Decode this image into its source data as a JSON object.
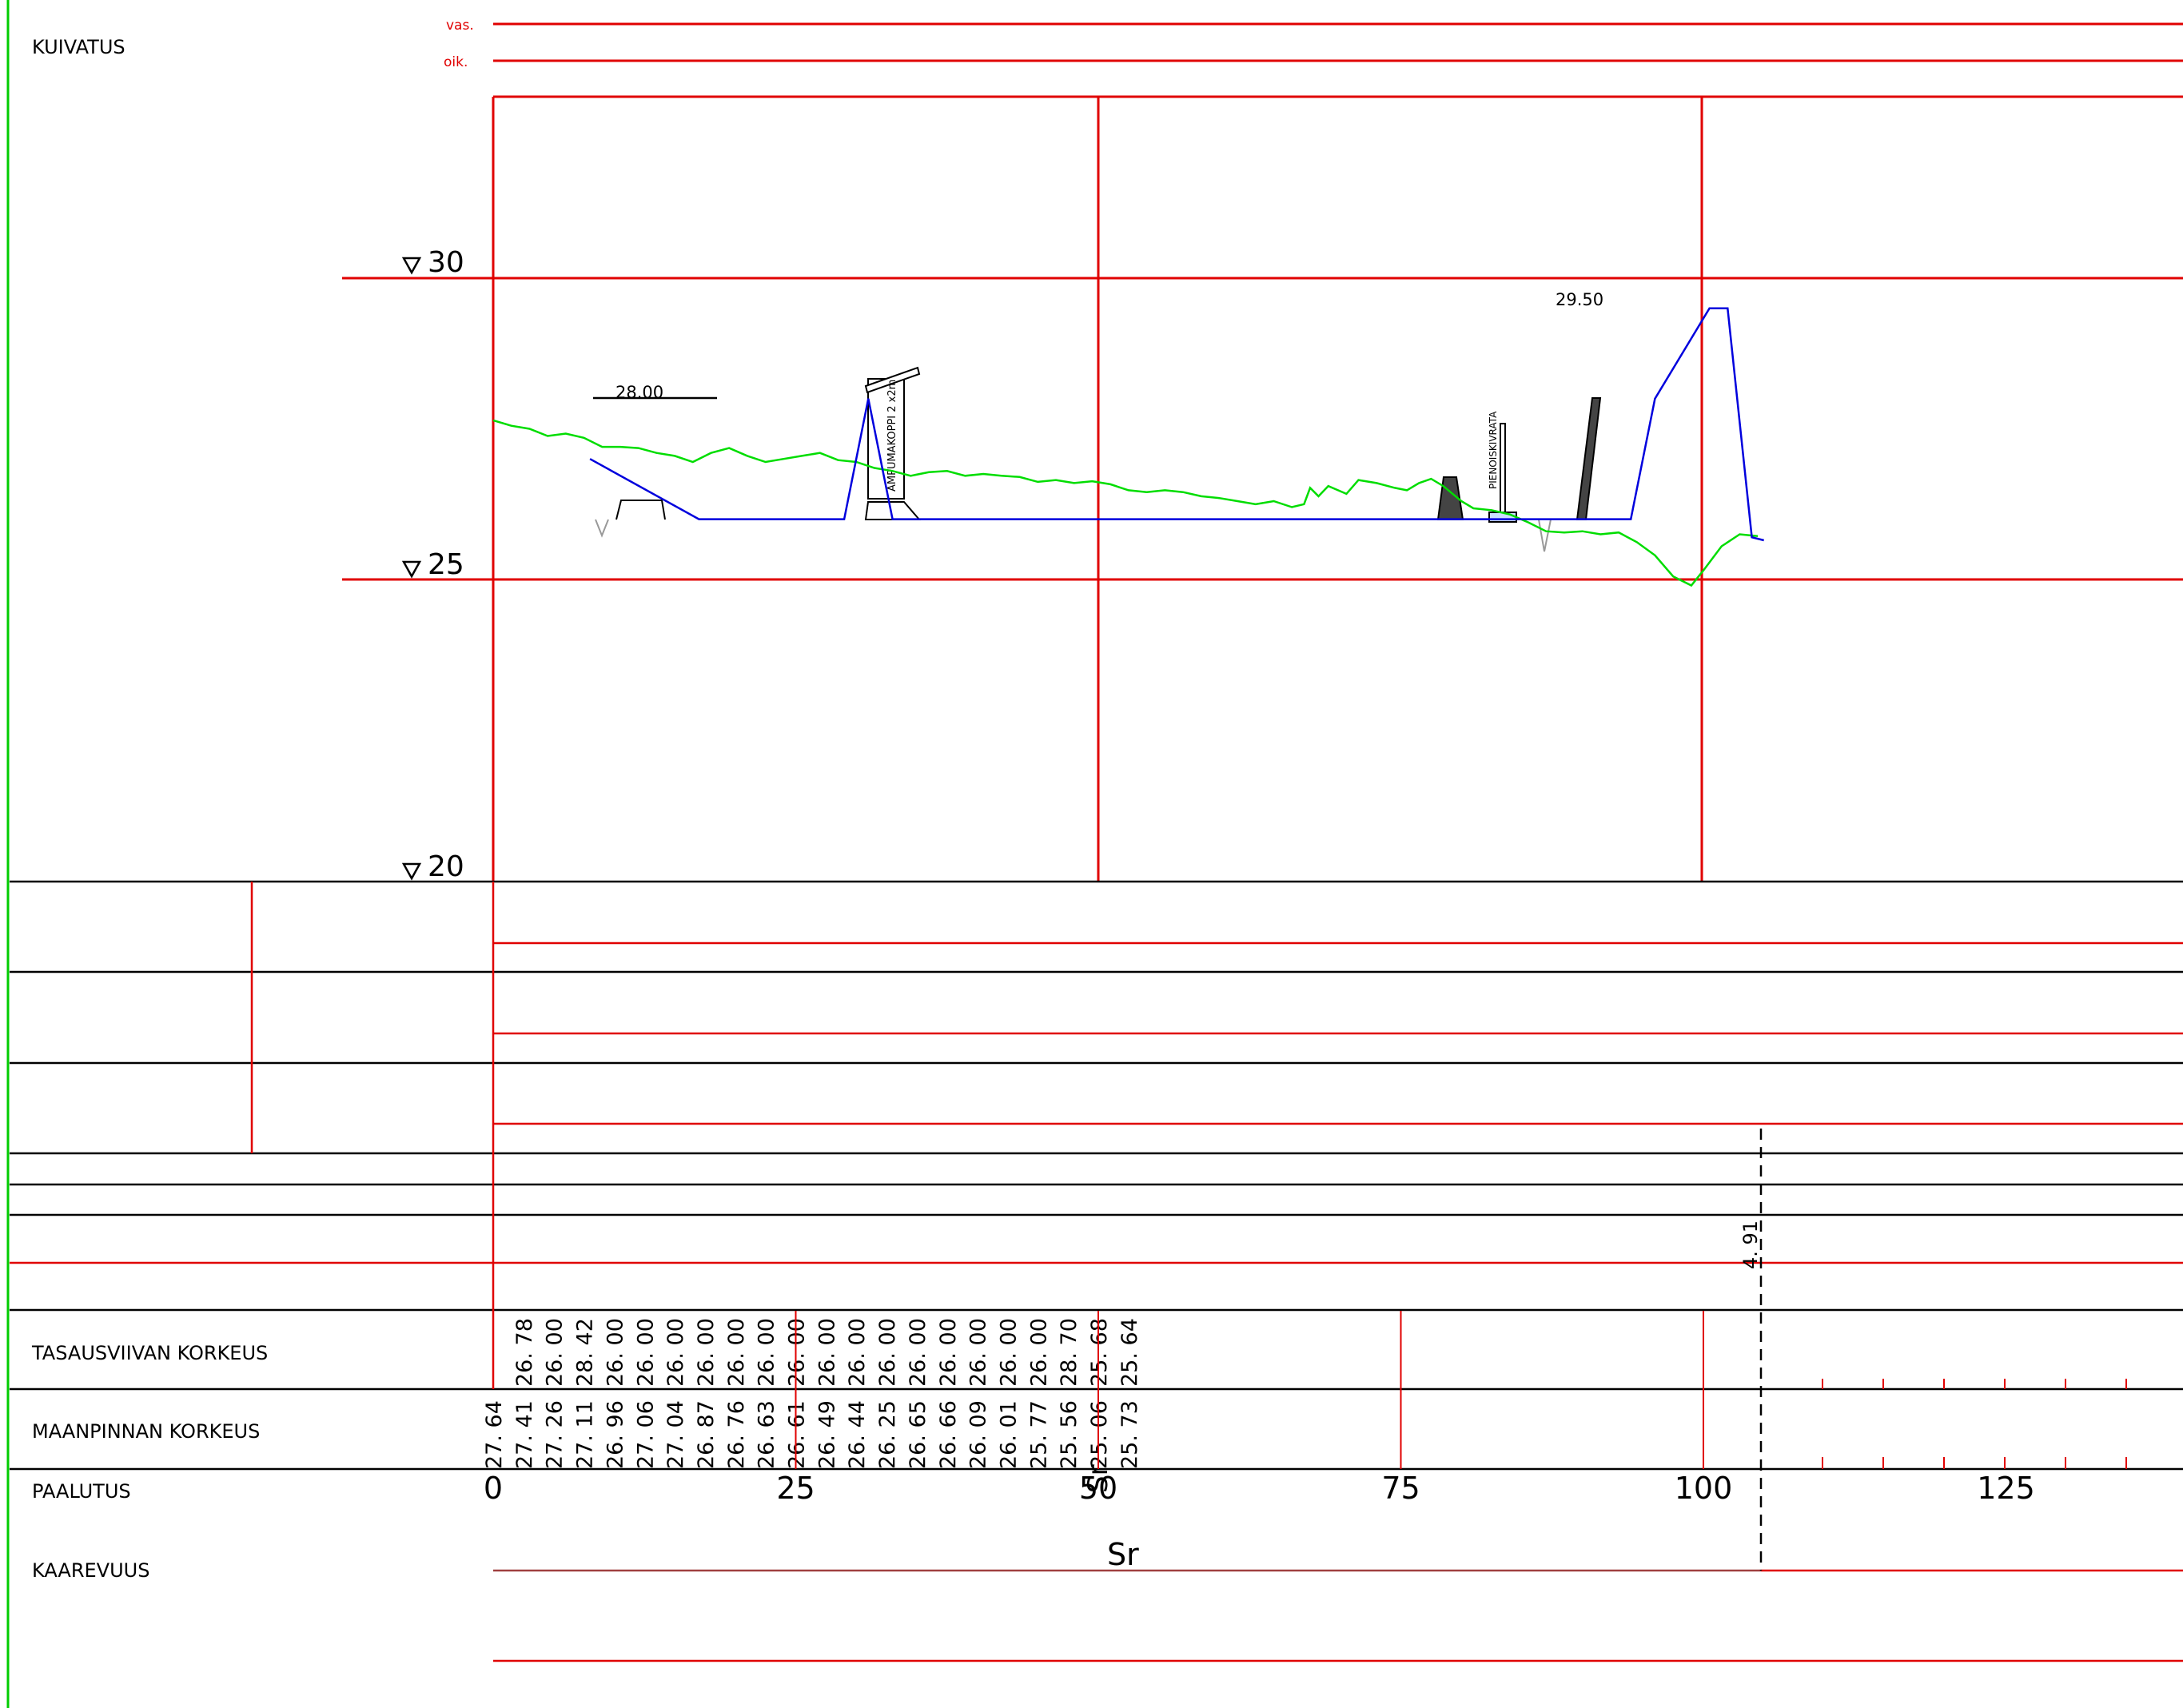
{
  "header": {
    "title": "KUIVATUS",
    "left_label": "vas.",
    "right_label": "oik."
  },
  "elevation_marks": [
    "30",
    "25",
    "20"
  ],
  "rows": {
    "tasausviiva": "TASAUSVIIVAN KORKEUS",
    "maanpinta": "MAANPINNAN KORKEUS",
    "paalutus": "PAALUTUS",
    "kaarevuus": "KAAREVUUS"
  },
  "stations": [
    "0",
    "25",
    "50",
    "75",
    "100",
    "125"
  ],
  "curvature_label": "Sr",
  "annotations": {
    "elev_left": "28.00",
    "elev_right": "29.50",
    "shelter": "AMPUMAKOPPI 2 x2m",
    "track": "PIENOISKIVRATA",
    "offset": "4. 91"
  },
  "chart_data": {
    "type": "line",
    "xlabel": "PAALUTUS",
    "ylabel": "",
    "xlim": [
      0,
      140
    ],
    "ylim": [
      20,
      33
    ],
    "stations": [
      0,
      2.5,
      5,
      7.5,
      10,
      12.5,
      15,
      17.5,
      20,
      22.5,
      25,
      27.5,
      30,
      32.5,
      35,
      37.5,
      40,
      42.5,
      45,
      47.5,
      50,
      52.5,
      55,
      57.5,
      60,
      62.5,
      65,
      67.5,
      70,
      72.5,
      75,
      77.5,
      80,
      82.5,
      85,
      87.5,
      90,
      92.5,
      95,
      97.5,
      100,
      102.5,
      105
    ],
    "tasausviivan_korkeus_labels": [
      "26. 78",
      "26. 00",
      "28. 42",
      "26. 00",
      "26. 00",
      "26. 00",
      "26. 00",
      "26. 00",
      "26. 00",
      "26. 00",
      "26. 00",
      "26. 00",
      "26. 00",
      "26. 00",
      "26. 00",
      "26. 00",
      "26. 00",
      "26. 00",
      "28. 70",
      "25. 68",
      "25. 64"
    ],
    "maanpinnan_korkeus_labels": [
      "27. 64",
      "27. 41",
      "27. 26",
      "27. 11",
      "26. 96",
      "27. 06",
      "27. 04",
      "26. 87",
      "26. 76",
      "26. 63",
      "26. 61",
      "26. 49",
      "26. 44",
      "26. 25",
      "26. 65",
      "26. 66",
      "26. 09",
      "26. 01",
      "25. 77",
      "25. 56",
      "25. 06",
      "25. 73"
    ],
    "series": [
      {
        "name": "MAANPINNAN KORKEUS",
        "color": "#00dd00",
        "points": [
          [
            0,
            27.64
          ],
          [
            1.5,
            27.55
          ],
          [
            3,
            27.5
          ],
          [
            4.5,
            27.38
          ],
          [
            6,
            27.42
          ],
          [
            7.5,
            27.35
          ],
          [
            9,
            27.2
          ],
          [
            10.5,
            27.2
          ],
          [
            12,
            27.18
          ],
          [
            13.5,
            27.1
          ],
          [
            15,
            27.05
          ],
          [
            16.5,
            26.95
          ],
          [
            18,
            27.1
          ],
          [
            19.5,
            27.18
          ],
          [
            21,
            27.05
          ],
          [
            22.5,
            26.95
          ],
          [
            24,
            27.0
          ],
          [
            25.5,
            27.05
          ],
          [
            27,
            27.1
          ],
          [
            28.5,
            26.98
          ],
          [
            30,
            26.95
          ],
          [
            31.5,
            26.85
          ],
          [
            33,
            26.8
          ],
          [
            34.5,
            26.72
          ],
          [
            36,
            26.78
          ],
          [
            37.5,
            26.8
          ],
          [
            39,
            26.72
          ],
          [
            40.5,
            26.75
          ],
          [
            42,
            26.72
          ],
          [
            43.5,
            26.7
          ],
          [
            45,
            26.62
          ],
          [
            46.5,
            26.65
          ],
          [
            48,
            26.6
          ],
          [
            49.5,
            26.63
          ],
          [
            51,
            26.58
          ],
          [
            52.5,
            26.48
          ],
          [
            54,
            26.45
          ],
          [
            55.5,
            26.48
          ],
          [
            57,
            26.45
          ],
          [
            58.5,
            26.38
          ],
          [
            60,
            26.35
          ],
          [
            61.5,
            26.3
          ],
          [
            63,
            26.25
          ],
          [
            64.5,
            26.3
          ],
          [
            66,
            26.2
          ],
          [
            67,
            26.25
          ],
          [
            67.5,
            26.52
          ],
          [
            68.2,
            26.38
          ],
          [
            69,
            26.55
          ],
          [
            70.5,
            26.42
          ],
          [
            71.5,
            26.65
          ],
          [
            73,
            26.6
          ],
          [
            74.5,
            26.52
          ],
          [
            75.5,
            26.48
          ],
          [
            76.5,
            26.6
          ],
          [
            77.5,
            26.67
          ],
          [
            78.5,
            26.55
          ],
          [
            80,
            26.3
          ],
          [
            81,
            26.18
          ],
          [
            82.5,
            26.15
          ],
          [
            84,
            26.08
          ],
          [
            85.5,
            25.95
          ],
          [
            87,
            25.8
          ],
          [
            88.5,
            25.78
          ],
          [
            90,
            25.8
          ],
          [
            91.5,
            25.75
          ],
          [
            93,
            25.78
          ],
          [
            94.5,
            25.62
          ],
          [
            96,
            25.4
          ],
          [
            97.5,
            25.05
          ],
          [
            99,
            24.9
          ],
          [
            100,
            25.15
          ],
          [
            101.5,
            25.55
          ],
          [
            103,
            25.75
          ],
          [
            104.5,
            25.72
          ]
        ]
      },
      {
        "name": "TASAUSVIIVAN KORKEUS",
        "color": "#0000dd",
        "points": [
          [
            8,
            27.0
          ],
          [
            17,
            26.0
          ],
          [
            29,
            26.0
          ],
          [
            31,
            28.0
          ],
          [
            33,
            26.0
          ],
          [
            94,
            26.0
          ],
          [
            96,
            28.0
          ],
          [
            100.5,
            29.5
          ],
          [
            102,
            29.5
          ],
          [
            104,
            25.7
          ],
          [
            105,
            25.65
          ]
        ]
      }
    ]
  }
}
